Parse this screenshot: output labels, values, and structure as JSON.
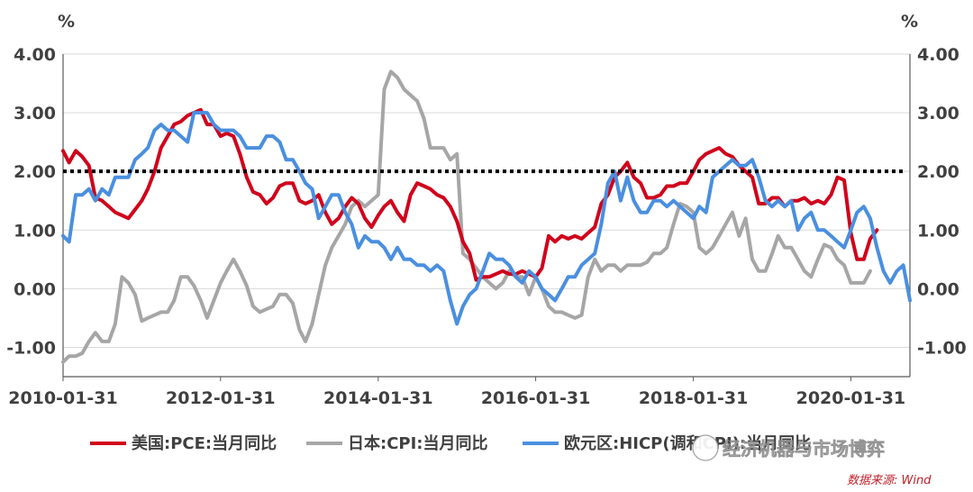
{
  "chart_data": {
    "type": "line",
    "title": "",
    "xlabel": "",
    "ylabel_left": "%",
    "ylabel_right": "%",
    "ylim": [
      -1.5,
      4.0
    ],
    "y_ticks": [
      "4.00",
      "3.00",
      "2.00",
      "1.00",
      "0.00",
      "-1.00"
    ],
    "x_ticks": [
      "2010-01-31",
      "2012-01-31",
      "2014-01-31",
      "2016-01-31",
      "2018-01-31",
      "2020-01-31"
    ],
    "x_start": "2010-01-31",
    "reference_line": {
      "value": 2.0,
      "style": "dotted",
      "color": "#000000"
    },
    "grid": "horizontal",
    "legend_position": "bottom",
    "series": [
      {
        "name": "美国:PCE:当月同比",
        "color": "#d0021b",
        "start": "2010-01",
        "values": [
          2.35,
          2.15,
          2.35,
          2.25,
          2.1,
          1.55,
          1.5,
          1.4,
          1.3,
          1.25,
          1.2,
          1.35,
          1.5,
          1.7,
          2.0,
          2.4,
          2.6,
          2.8,
          2.85,
          2.95,
          3.0,
          3.05,
          2.8,
          2.8,
          2.6,
          2.65,
          2.6,
          2.3,
          1.9,
          1.65,
          1.6,
          1.45,
          1.55,
          1.75,
          1.8,
          1.8,
          1.5,
          1.45,
          1.5,
          1.6,
          1.3,
          1.1,
          1.2,
          1.4,
          1.55,
          1.45,
          1.2,
          1.05,
          1.25,
          1.4,
          1.5,
          1.3,
          1.15,
          1.6,
          1.8,
          1.75,
          1.7,
          1.6,
          1.55,
          1.4,
          1.15,
          0.8,
          0.6,
          0.15,
          0.2,
          0.2,
          0.25,
          0.3,
          0.25,
          0.25,
          0.3,
          0.25,
          0.2,
          0.35,
          0.9,
          0.8,
          0.9,
          0.85,
          0.9,
          0.85,
          0.95,
          1.05,
          1.45,
          1.6,
          1.9,
          2.0,
          2.15,
          1.9,
          1.8,
          1.55,
          1.55,
          1.6,
          1.75,
          1.75,
          1.8,
          1.8,
          2.0,
          2.2,
          2.3,
          2.35,
          2.4,
          2.3,
          2.25,
          2.1,
          2.0,
          1.9,
          1.45,
          1.45,
          1.55,
          1.55,
          1.4,
          1.5,
          1.5,
          1.55,
          1.45,
          1.5,
          1.45,
          1.6,
          1.9,
          1.85,
          0.95,
          0.5,
          0.5,
          0.85,
          1.0
        ]
      },
      {
        "name": "日本:CPI:当月同比",
        "color": "#a6a6a6",
        "start": "2010-01",
        "values": [
          -1.25,
          -1.15,
          -1.15,
          -1.1,
          -0.9,
          -0.75,
          -0.9,
          -0.9,
          -0.6,
          0.2,
          0.1,
          -0.1,
          -0.55,
          -0.5,
          -0.45,
          -0.4,
          -0.4,
          -0.2,
          0.2,
          0.2,
          0.05,
          -0.2,
          -0.5,
          -0.2,
          0.1,
          0.3,
          0.5,
          0.3,
          0.05,
          -0.3,
          -0.4,
          -0.35,
          -0.3,
          -0.1,
          -0.1,
          -0.25,
          -0.7,
          -0.9,
          -0.6,
          -0.1,
          0.4,
          0.7,
          0.9,
          1.1,
          1.4,
          1.5,
          1.4,
          1.5,
          1.6,
          3.4,
          3.7,
          3.6,
          3.4,
          3.3,
          3.2,
          2.9,
          2.4,
          2.4,
          2.4,
          2.2,
          2.3,
          0.6,
          0.5,
          0.35,
          0.2,
          0.1,
          0.0,
          0.1,
          0.3,
          0.2,
          0.2,
          -0.1,
          0.2,
          0.0,
          -0.3,
          -0.4,
          -0.4,
          -0.45,
          -0.5,
          -0.45,
          0.2,
          0.5,
          0.3,
          0.4,
          0.4,
          0.3,
          0.4,
          0.4,
          0.4,
          0.45,
          0.6,
          0.6,
          0.7,
          1.1,
          1.45,
          1.4,
          1.3,
          0.7,
          0.6,
          0.7,
          0.9,
          1.1,
          1.3,
          0.9,
          1.2,
          0.5,
          0.3,
          0.3,
          0.6,
          0.9,
          0.7,
          0.7,
          0.5,
          0.3,
          0.2,
          0.5,
          0.75,
          0.7,
          0.5,
          0.4,
          0.1,
          0.1,
          0.1,
          0.3
        ]
      },
      {
        "name": "欧元区:HICP(调和CPI):当月同比",
        "color": "#4a8fe0",
        "start": "2010-01",
        "values": [
          0.9,
          0.8,
          1.6,
          1.6,
          1.7,
          1.5,
          1.7,
          1.6,
          1.9,
          1.9,
          1.9,
          2.2,
          2.3,
          2.4,
          2.7,
          2.8,
          2.7,
          2.7,
          2.6,
          2.5,
          3.0,
          3.0,
          3.0,
          2.8,
          2.7,
          2.7,
          2.7,
          2.6,
          2.4,
          2.4,
          2.4,
          2.6,
          2.6,
          2.5,
          2.2,
          2.2,
          2.0,
          1.8,
          1.7,
          1.2,
          1.4,
          1.6,
          1.6,
          1.3,
          1.1,
          0.7,
          0.9,
          0.8,
          0.8,
          0.7,
          0.5,
          0.7,
          0.5,
          0.5,
          0.4,
          0.4,
          0.3,
          0.4,
          0.3,
          -0.2,
          -0.6,
          -0.3,
          -0.1,
          0.0,
          0.3,
          0.6,
          0.5,
          0.5,
          0.4,
          0.2,
          0.1,
          0.3,
          0.2,
          0.0,
          -0.1,
          -0.2,
          0.0,
          0.2,
          0.2,
          0.4,
          0.5,
          0.6,
          1.1,
          1.8,
          2.0,
          1.5,
          1.9,
          1.5,
          1.3,
          1.3,
          1.5,
          1.5,
          1.4,
          1.5,
          1.4,
          1.3,
          1.2,
          1.4,
          1.3,
          1.9,
          2.0,
          2.1,
          2.2,
          2.1,
          2.1,
          2.2,
          1.9,
          1.5,
          1.4,
          1.5,
          1.4,
          1.5,
          1.0,
          1.2,
          1.3,
          1.0,
          1.0,
          0.9,
          0.8,
          0.7,
          1.0,
          1.3,
          1.4,
          1.2,
          0.7,
          0.3,
          0.1,
          0.3,
          0.4,
          -0.2
        ]
      }
    ]
  },
  "watermark": "经济机器与市场博弈",
  "source": "数据来源: Wind"
}
